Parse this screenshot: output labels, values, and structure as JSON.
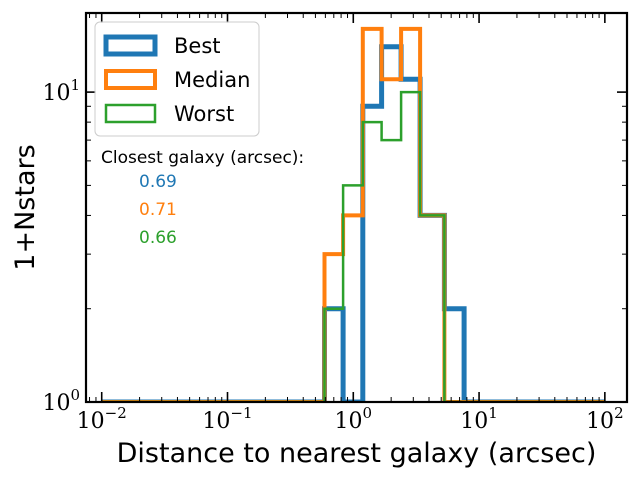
{
  "chart_data": {
    "type": "histogram",
    "xlabel": "Distance to nearest galaxy (arcsec)",
    "ylabel": "1+Nstars",
    "x_scale": "log",
    "y_scale": "log",
    "xlim": [
      0.0075,
      150
    ],
    "ylim": [
      1,
      18
    ],
    "x_ticks": [
      {
        "value": 0.01,
        "base": "10",
        "exp": "−2"
      },
      {
        "value": 0.1,
        "base": "10",
        "exp": "−1"
      },
      {
        "value": 1,
        "base": "10",
        "exp": "0"
      },
      {
        "value": 10,
        "base": "10",
        "exp": "1"
      },
      {
        "value": 100,
        "base": "10",
        "exp": "2"
      }
    ],
    "y_ticks": [
      {
        "value": 1,
        "base": "10",
        "exp": "0"
      },
      {
        "value": 10,
        "base": "10",
        "exp": "1"
      }
    ],
    "grid": false,
    "legend_position": "top-left",
    "bin_edges": [
      0.01,
      0.59,
      0.83,
      1.19,
      1.68,
      2.4,
      3.4,
      5.3,
      7.6,
      100
    ],
    "series": [
      {
        "name": "Best",
        "color": "#1f77b4",
        "line_width": 5,
        "values": [
          1,
          2,
          1,
          9,
          14,
          11,
          4,
          2,
          1
        ]
      },
      {
        "name": "Median",
        "color": "#ff7f0e",
        "line_width": 4,
        "values": [
          1,
          3,
          4,
          16,
          11,
          16,
          4,
          1,
          1
        ]
      },
      {
        "name": "Worst",
        "color": "#2ca02c",
        "line_width": 2.5,
        "values": [
          1,
          2,
          5,
          8,
          7,
          10,
          4,
          1,
          1
        ]
      }
    ],
    "annotation": {
      "title": "Closest galaxy (arcsec):",
      "values": [
        {
          "text": "0.69",
          "color": "#1f77b4"
        },
        {
          "text": "0.71",
          "color": "#ff7f0e"
        },
        {
          "text": "0.66",
          "color": "#2ca02c"
        }
      ]
    }
  }
}
